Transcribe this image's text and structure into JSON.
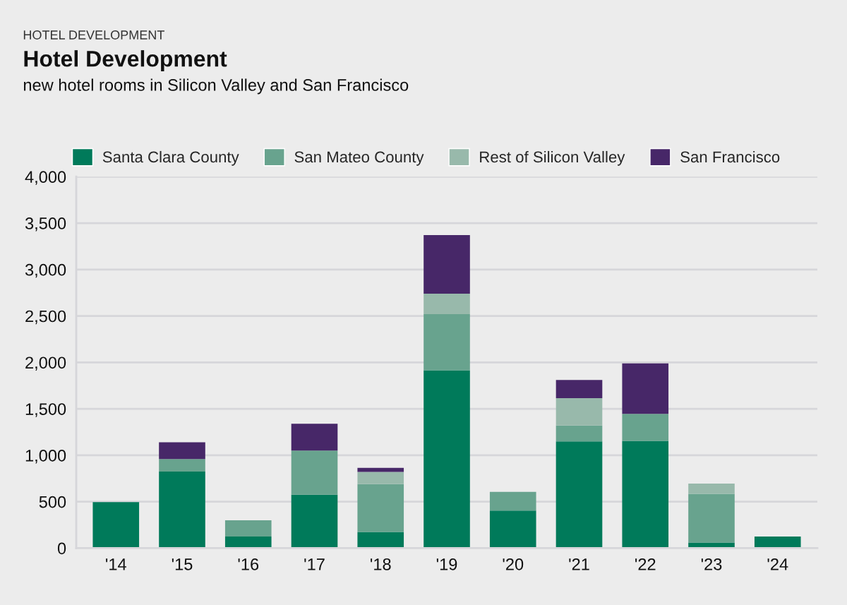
{
  "chart_data": {
    "type": "bar",
    "stacked": true,
    "title": "Hotel Development",
    "subtitle": "new hotel rooms in Silicon Valley and San Francisco",
    "annotations": [
      "HOTEL DEVELOPMENT"
    ],
    "categories": [
      "'14",
      "'15",
      "'16",
      "'17",
      "'18",
      "'19",
      "'20",
      "'21",
      "'22",
      "'23",
      "'24"
    ],
    "series": [
      {
        "name": "Santa Clara County",
        "color": "#007a5a",
        "values": [
          495,
          825,
          125,
          575,
          175,
          1915,
          405,
          1150,
          1155,
          60,
          125
        ]
      },
      {
        "name": "San Mateo County",
        "color": "#68a38e",
        "values": [
          null,
          135,
          175,
          475,
          515,
          605,
          200,
          170,
          290,
          525,
          null
        ]
      },
      {
        "name": "Rest of Silicon Valley",
        "color": "#98b9ab",
        "values": [
          null,
          null,
          null,
          null,
          130,
          220,
          null,
          295,
          null,
          110,
          null
        ]
      },
      {
        "name": "San Francisco",
        "color": "#472768",
        "values": [
          null,
          180,
          null,
          290,
          45,
          630,
          null,
          195,
          545,
          null,
          null
        ]
      }
    ],
    "ylim": [
      0,
      4000
    ],
    "yticks": [
      {
        "value": 0,
        "label": "0"
      },
      {
        "value": 500,
        "label": "500"
      },
      {
        "value": 1000,
        "label": "1,000"
      },
      {
        "value": 1500,
        "label": "1,500"
      },
      {
        "value": 2000,
        "label": "2,000"
      },
      {
        "value": 2500,
        "label": "2,500"
      },
      {
        "value": 3000,
        "label": "3,000"
      },
      {
        "value": 3500,
        "label": "3,500"
      },
      {
        "value": 4000,
        "label": "4,000"
      }
    ],
    "grid": "y",
    "legend": "top"
  }
}
